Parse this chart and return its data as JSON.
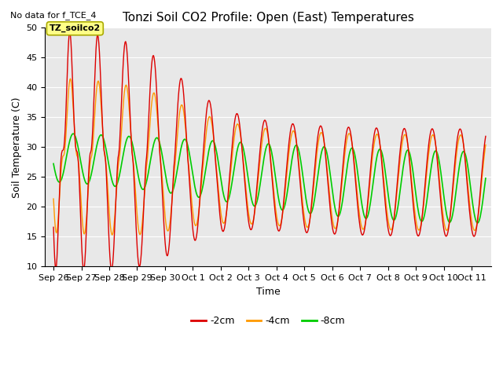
{
  "title": "Tonzi Soil CO2 Profile: Open (East) Temperatures",
  "no_data_text": "No data for f_TCE_4",
  "xlabel": "Time",
  "ylabel": "Soil Temperature (C)",
  "ylim": [
    10,
    50
  ],
  "annotation_text": "TZ_soilco2",
  "line_colors": {
    "minus2cm": "#dd0000",
    "minus4cm": "#ff9900",
    "minus8cm": "#00cc00"
  },
  "legend_labels": [
    "-2cm",
    "-4cm",
    "-8cm"
  ],
  "background_color": "#e8e8e8",
  "tick_labels": [
    "Sep 26",
    "Sep 27",
    "Sep 28",
    "Sep 29",
    "Sep 30",
    "Oct 1",
    "Oct 2",
    "Oct 3",
    "Oct 4",
    "Oct 5",
    "Oct 6",
    "Oct 7",
    "Oct 8",
    "Oct 9",
    "Oct 10",
    "Oct 11"
  ],
  "yticks": [
    10,
    15,
    20,
    25,
    30,
    35,
    40,
    45,
    50
  ],
  "title_fontsize": 11,
  "label_fontsize": 9,
  "tick_fontsize": 8,
  "legend_fontsize": 9
}
